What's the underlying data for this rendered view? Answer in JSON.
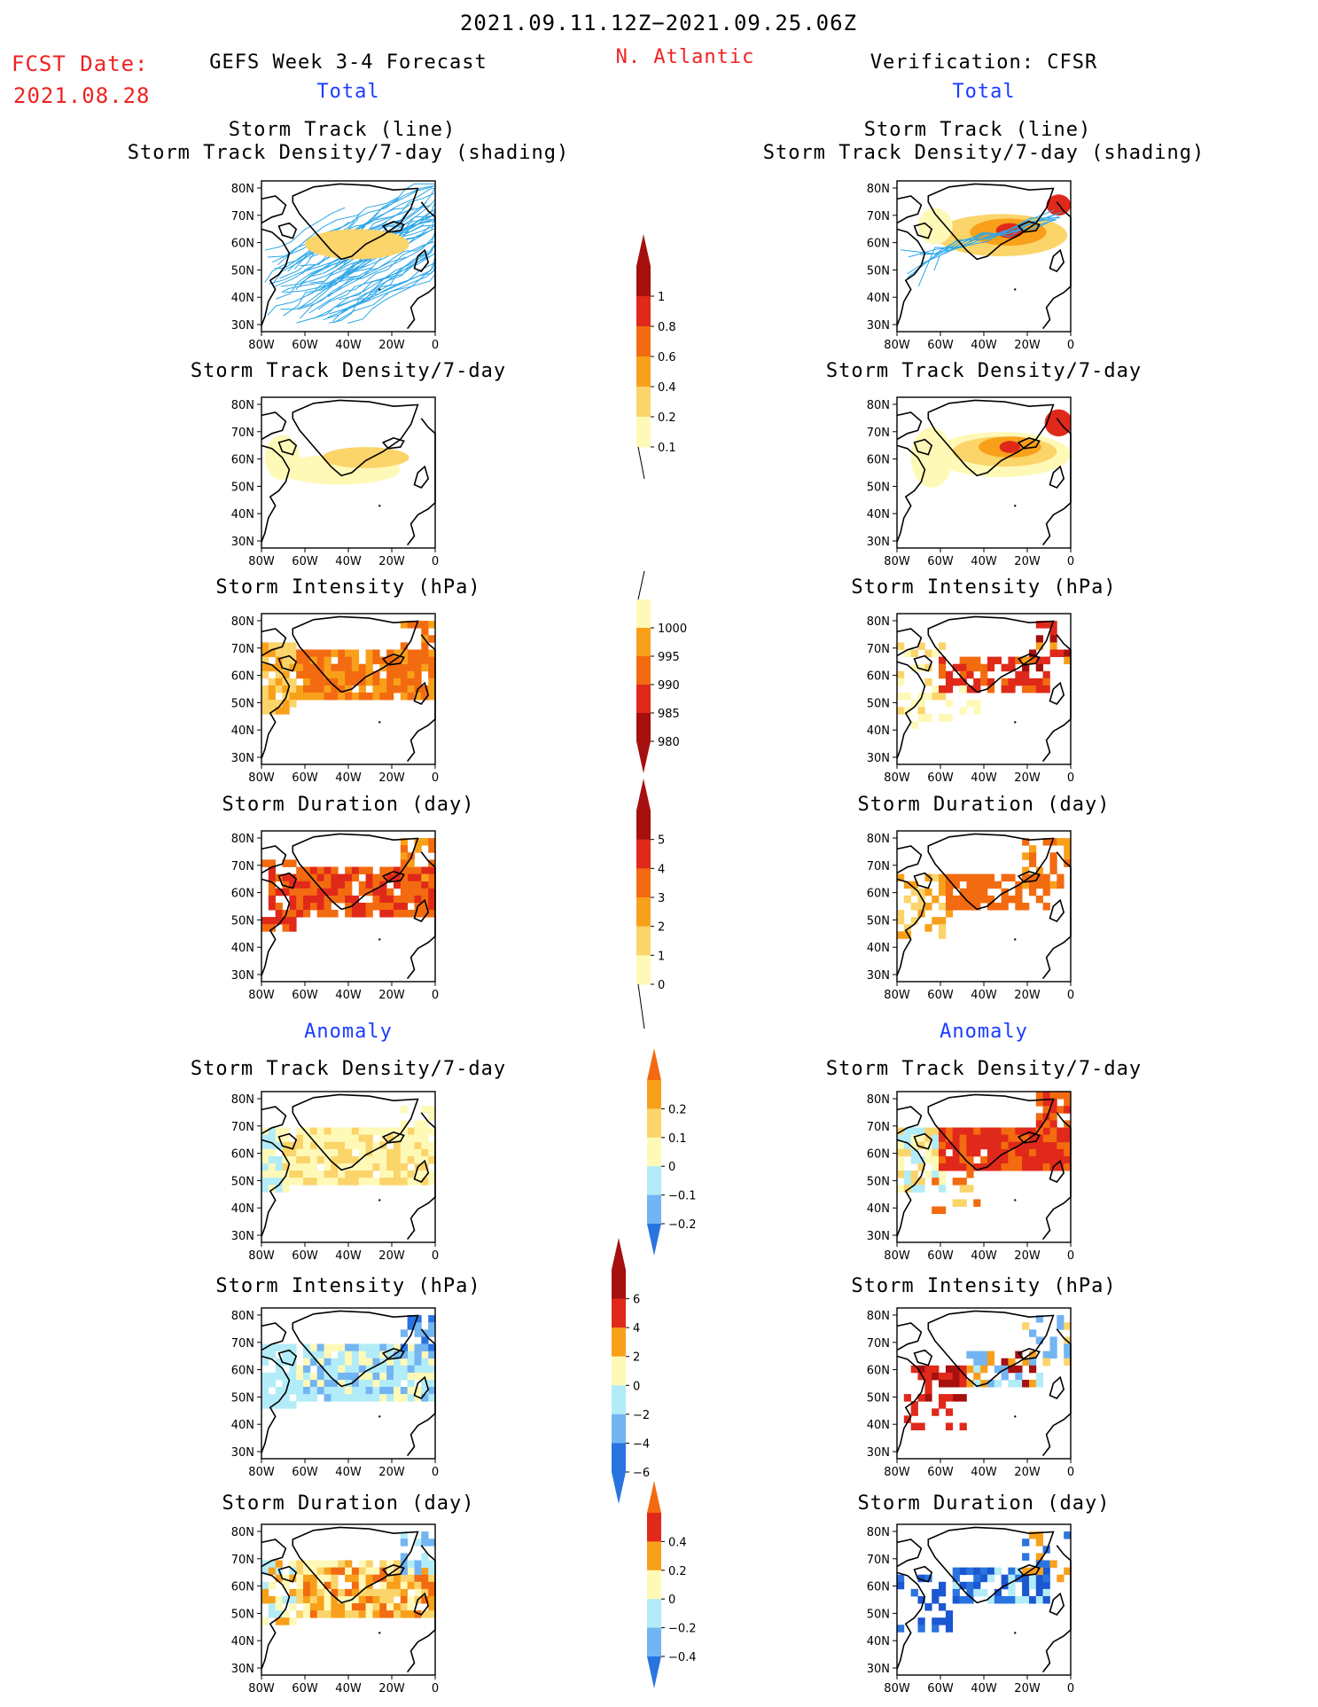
{
  "header": {
    "date_range": "2021.09.11.12Z−2021.09.25.06Z",
    "fcst_label": "FCST Date:",
    "fcst_date": "2021.08.28",
    "forecast_title": "GEFS Week 3-4 Forecast",
    "region": "N. Atlantic",
    "verification_title": "Verification: CFSR"
  },
  "sections": {
    "total": "Total",
    "anomaly": "Anomaly"
  },
  "panel_titles": {
    "track_line": "Storm Track (line)",
    "track_shading": "Storm Track Density/7-day (shading)",
    "density": "Storm Track Density/7-day",
    "intensity": "Storm Intensity (hPa)",
    "duration": "Storm Duration (day)"
  },
  "axes": {
    "lat_labels": [
      "80N",
      "70N",
      "60N",
      "50N",
      "40N",
      "30N"
    ],
    "lon_labels": [
      "80W",
      "60W",
      "40W",
      "20W",
      "0"
    ]
  },
  "colorbars": {
    "density_total": [
      "1",
      "0.8",
      "0.6",
      "0.4",
      "0.2",
      "0.1"
    ],
    "intensity_total": [
      "1000",
      "995",
      "990",
      "985",
      "980"
    ],
    "duration_total": [
      "5",
      "4",
      "3",
      "2",
      "1",
      "0"
    ],
    "density_anom": [
      "0.2",
      "0.1",
      "0",
      "−0.1",
      "−0.2"
    ],
    "intensity_anom": [
      "6",
      "4",
      "2",
      "0",
      "−2",
      "−4",
      "−6"
    ],
    "duration_anom": [
      "0.4",
      "0.2",
      "0",
      "−0.2",
      "−0.4"
    ]
  },
  "colors": {
    "title_red": "#ee2222",
    "section_blue": "#1a3cff",
    "track_forecast": "#2ba6e8",
    "track_verif": "#2ba6e8",
    "pale_yellow": "#fff9b8",
    "light_orange": "#fbd46a",
    "orange": "#f9a01b",
    "dark_orange": "#f36b10",
    "red": "#e0291a",
    "dark_red": "#a6100e",
    "light_blue": "#b2ecf8",
    "mid_blue": "#73b4f2",
    "blue": "#2a74e0",
    "dark_blue": "#1b57d0"
  }
}
